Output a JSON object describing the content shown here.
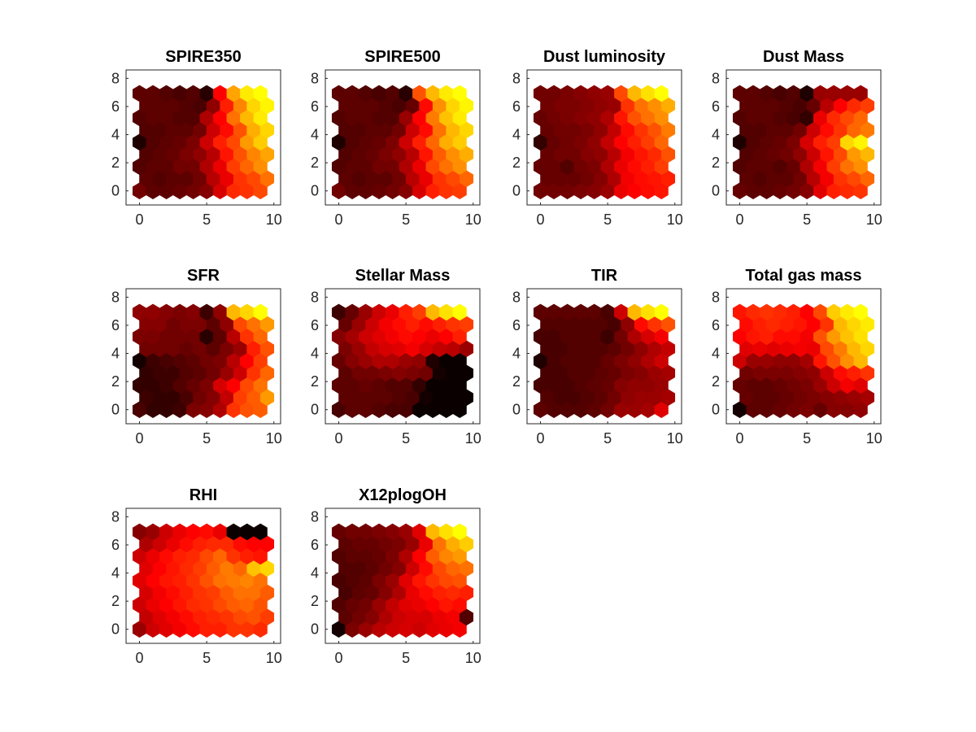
{
  "figure": {
    "colormap": "hot",
    "colormap_stops": [
      "#000000",
      "#800000",
      "#ff0000",
      "#ff8000",
      "#ffff00"
    ]
  },
  "chart_data": [
    {
      "type": "heatmap",
      "title": "SPIRE350",
      "xlim": [
        -1,
        10.5
      ],
      "ylim": [
        -1,
        8.6
      ],
      "xticks": [
        0,
        5,
        10
      ],
      "yticks": [
        0,
        2,
        4,
        6,
        8
      ],
      "values": [
        [
          0.22,
          0.18,
          0.18,
          0.2,
          0.22,
          0.26,
          0.42,
          0.58,
          0.6,
          0.64
        ],
        [
          0.18,
          0.16,
          0.18,
          0.18,
          0.22,
          0.36,
          0.46,
          0.6,
          0.64,
          0.72
        ],
        [
          0.16,
          0.18,
          0.18,
          0.22,
          0.22,
          0.34,
          0.46,
          0.62,
          0.7,
          0.78
        ],
        [
          0.16,
          0.18,
          0.2,
          0.24,
          0.28,
          0.36,
          0.54,
          0.66,
          0.76,
          0.82
        ],
        [
          0.06,
          0.16,
          0.18,
          0.2,
          0.24,
          0.4,
          0.56,
          0.64,
          0.8,
          0.9
        ],
        [
          0.16,
          0.16,
          0.18,
          0.18,
          0.22,
          0.4,
          0.52,
          0.66,
          0.84,
          0.92
        ],
        [
          0.16,
          0.18,
          0.18,
          0.16,
          0.16,
          0.34,
          0.5,
          0.72,
          0.86,
          0.96
        ],
        [
          0.18,
          0.18,
          0.18,
          0.16,
          0.14,
          0.28,
          0.56,
          0.76,
          0.92,
          0.98
        ],
        [
          0.18,
          0.18,
          0.16,
          0.14,
          0.16,
          0.08,
          0.5,
          0.82,
          0.96,
          1.0
        ]
      ]
    },
    {
      "type": "heatmap",
      "title": "SPIRE500",
      "xlim": [
        -1,
        10.5
      ],
      "ylim": [
        -1,
        8.6
      ],
      "xticks": [
        0,
        5,
        10
      ],
      "yticks": [
        0,
        2,
        4,
        6,
        8
      ],
      "values": [
        [
          0.22,
          0.18,
          0.18,
          0.2,
          0.22,
          0.26,
          0.42,
          0.56,
          0.6,
          0.62
        ],
        [
          0.18,
          0.16,
          0.18,
          0.18,
          0.22,
          0.36,
          0.46,
          0.6,
          0.64,
          0.7
        ],
        [
          0.16,
          0.18,
          0.18,
          0.22,
          0.22,
          0.34,
          0.46,
          0.64,
          0.72,
          0.78
        ],
        [
          0.16,
          0.18,
          0.2,
          0.24,
          0.28,
          0.36,
          0.54,
          0.68,
          0.78,
          0.84
        ],
        [
          0.06,
          0.16,
          0.18,
          0.2,
          0.24,
          0.4,
          0.56,
          0.7,
          0.84,
          0.9
        ],
        [
          0.16,
          0.16,
          0.18,
          0.18,
          0.22,
          0.4,
          0.52,
          0.72,
          0.86,
          0.92
        ],
        [
          0.16,
          0.18,
          0.18,
          0.16,
          0.16,
          0.3,
          0.5,
          0.74,
          0.88,
          0.96
        ],
        [
          0.18,
          0.18,
          0.18,
          0.16,
          0.14,
          0.2,
          0.52,
          0.78,
          0.92,
          0.98
        ],
        [
          0.18,
          0.18,
          0.16,
          0.14,
          0.16,
          0.08,
          0.66,
          0.86,
          0.96,
          1.0
        ]
      ]
    },
    {
      "type": "heatmap",
      "title": "Dust luminosity",
      "xlim": [
        -1,
        10.5
      ],
      "ylim": [
        -1,
        8.6
      ],
      "xticks": [
        0,
        5,
        10
      ],
      "yticks": [
        0,
        2,
        4,
        6,
        8
      ],
      "values": [
        [
          0.22,
          0.22,
          0.22,
          0.24,
          0.26,
          0.3,
          0.46,
          0.5,
          0.52,
          0.54
        ],
        [
          0.2,
          0.2,
          0.2,
          0.22,
          0.26,
          0.34,
          0.48,
          0.52,
          0.54,
          0.56
        ],
        [
          0.2,
          0.2,
          0.16,
          0.22,
          0.24,
          0.34,
          0.46,
          0.52,
          0.56,
          0.62
        ],
        [
          0.2,
          0.22,
          0.22,
          0.26,
          0.28,
          0.36,
          0.48,
          0.54,
          0.58,
          0.66
        ],
        [
          0.1,
          0.2,
          0.22,
          0.24,
          0.28,
          0.38,
          0.5,
          0.56,
          0.62,
          0.7
        ],
        [
          0.2,
          0.22,
          0.22,
          0.24,
          0.28,
          0.38,
          0.52,
          0.6,
          0.66,
          0.74
        ],
        [
          0.2,
          0.22,
          0.24,
          0.26,
          0.28,
          0.34,
          0.54,
          0.66,
          0.72,
          0.78
        ],
        [
          0.22,
          0.24,
          0.24,
          0.26,
          0.28,
          0.3,
          0.6,
          0.72,
          0.78,
          0.84
        ],
        [
          0.22,
          0.22,
          0.24,
          0.26,
          0.28,
          0.3,
          0.64,
          0.86,
          0.94,
          1.0
        ]
      ]
    },
    {
      "type": "heatmap",
      "title": "Dust Mass",
      "xlim": [
        -1,
        10.5
      ],
      "ylim": [
        -1,
        8.6
      ],
      "xticks": [
        0,
        5,
        10
      ],
      "yticks": [
        0,
        2,
        4,
        6,
        8
      ],
      "values": [
        [
          0.2,
          0.18,
          0.18,
          0.2,
          0.22,
          0.26,
          0.44,
          0.56,
          0.58,
          0.6
        ],
        [
          0.18,
          0.16,
          0.18,
          0.18,
          0.22,
          0.36,
          0.48,
          0.6,
          0.64,
          0.7
        ],
        [
          0.16,
          0.18,
          0.18,
          0.16,
          0.2,
          0.34,
          0.48,
          0.62,
          0.72,
          0.78
        ],
        [
          0.16,
          0.18,
          0.2,
          0.22,
          0.28,
          0.4,
          0.54,
          0.64,
          0.8,
          0.86
        ],
        [
          0.06,
          0.16,
          0.18,
          0.2,
          0.24,
          0.42,
          0.56,
          0.62,
          0.92,
          0.98
        ],
        [
          0.16,
          0.16,
          0.18,
          0.18,
          0.22,
          0.4,
          0.52,
          0.6,
          0.7,
          0.74
        ],
        [
          0.16,
          0.18,
          0.18,
          0.16,
          0.14,
          0.1,
          0.46,
          0.58,
          0.64,
          0.7
        ],
        [
          0.18,
          0.18,
          0.18,
          0.16,
          0.14,
          0.2,
          0.36,
          0.5,
          0.58,
          0.62
        ],
        [
          0.18,
          0.18,
          0.16,
          0.14,
          0.16,
          0.06,
          0.3,
          0.3,
          0.3,
          0.3
        ]
      ]
    },
    {
      "type": "heatmap",
      "title": "SFR",
      "xlim": [
        -1,
        10.5
      ],
      "ylim": [
        -1,
        8.6
      ],
      "xticks": [
        0,
        5,
        10
      ],
      "yticks": [
        0,
        2,
        4,
        6,
        8
      ],
      "values": [
        [
          0.14,
          0.1,
          0.1,
          0.12,
          0.24,
          0.26,
          0.34,
          0.6,
          0.66,
          0.68
        ],
        [
          0.12,
          0.1,
          0.1,
          0.14,
          0.22,
          0.26,
          0.38,
          0.62,
          0.68,
          0.8
        ],
        [
          0.1,
          0.1,
          0.12,
          0.16,
          0.2,
          0.24,
          0.42,
          0.5,
          0.64,
          0.72
        ],
        [
          0.1,
          0.12,
          0.12,
          0.16,
          0.18,
          0.22,
          0.3,
          0.4,
          0.6,
          0.7
        ],
        [
          0.04,
          0.12,
          0.14,
          0.16,
          0.18,
          0.22,
          0.24,
          0.36,
          0.5,
          0.62
        ],
        [
          0.22,
          0.22,
          0.22,
          0.2,
          0.22,
          0.18,
          0.24,
          0.3,
          0.56,
          0.66
        ],
        [
          0.24,
          0.24,
          0.22,
          0.22,
          0.22,
          0.08,
          0.18,
          0.36,
          0.6,
          0.7
        ],
        [
          0.26,
          0.26,
          0.22,
          0.24,
          0.24,
          0.18,
          0.28,
          0.64,
          0.72,
          0.8
        ],
        [
          0.28,
          0.28,
          0.26,
          0.24,
          0.26,
          0.12,
          0.28,
          0.86,
          0.92,
          1.0
        ]
      ]
    },
    {
      "type": "heatmap",
      "title": "Stellar Mass",
      "xlim": [
        -1,
        10.5
      ],
      "ylim": [
        -1,
        8.6
      ],
      "xticks": [
        0,
        5,
        10
      ],
      "yticks": [
        0,
        2,
        4,
        6,
        8
      ],
      "values": [
        [
          0.14,
          0.18,
          0.18,
          0.16,
          0.14,
          0.14,
          0.02,
          0.02,
          0.02,
          0.02
        ],
        [
          0.18,
          0.18,
          0.18,
          0.18,
          0.16,
          0.14,
          0.04,
          0.02,
          0.02,
          0.02
        ],
        [
          0.18,
          0.18,
          0.2,
          0.18,
          0.16,
          0.16,
          0.1,
          0.02,
          0.02,
          0.02
        ],
        [
          0.18,
          0.22,
          0.22,
          0.24,
          0.26,
          0.24,
          0.22,
          0.04,
          0.02,
          0.02
        ],
        [
          0.2,
          0.26,
          0.3,
          0.34,
          0.34,
          0.3,
          0.28,
          0.06,
          0.02,
          0.02
        ],
        [
          0.24,
          0.3,
          0.38,
          0.42,
          0.44,
          0.48,
          0.42,
          0.38,
          0.36,
          0.3
        ],
        [
          0.26,
          0.32,
          0.4,
          0.44,
          0.48,
          0.52,
          0.5,
          0.46,
          0.5,
          0.56
        ],
        [
          0.2,
          0.3,
          0.4,
          0.48,
          0.52,
          0.56,
          0.52,
          0.56,
          0.6,
          0.62
        ],
        [
          0.12,
          0.2,
          0.3,
          0.4,
          0.46,
          0.56,
          0.62,
          0.86,
          0.94,
          1.0
        ]
      ]
    },
    {
      "type": "heatmap",
      "title": "TIR",
      "xlim": [
        -1,
        10.5
      ],
      "ylim": [
        -1,
        8.6
      ],
      "xticks": [
        0,
        5,
        10
      ],
      "yticks": [
        0,
        2,
        4,
        6,
        8
      ],
      "values": [
        [
          0.18,
          0.16,
          0.16,
          0.16,
          0.18,
          0.22,
          0.3,
          0.3,
          0.32,
          0.44
        ],
        [
          0.16,
          0.14,
          0.14,
          0.16,
          0.18,
          0.22,
          0.28,
          0.3,
          0.3,
          0.32
        ],
        [
          0.14,
          0.14,
          0.14,
          0.16,
          0.18,
          0.2,
          0.26,
          0.28,
          0.28,
          0.3
        ],
        [
          0.14,
          0.14,
          0.16,
          0.16,
          0.18,
          0.2,
          0.24,
          0.26,
          0.3,
          0.32
        ],
        [
          0.06,
          0.14,
          0.16,
          0.16,
          0.16,
          0.2,
          0.24,
          0.28,
          0.34,
          0.4
        ],
        [
          0.14,
          0.14,
          0.16,
          0.16,
          0.16,
          0.18,
          0.22,
          0.28,
          0.34,
          0.38
        ],
        [
          0.14,
          0.14,
          0.16,
          0.16,
          0.16,
          0.12,
          0.22,
          0.34,
          0.42,
          0.48
        ],
        [
          0.16,
          0.16,
          0.16,
          0.16,
          0.16,
          0.14,
          0.28,
          0.52,
          0.6,
          0.66
        ],
        [
          0.18,
          0.18,
          0.18,
          0.18,
          0.18,
          0.14,
          0.4,
          0.86,
          0.94,
          1.0
        ]
      ]
    },
    {
      "type": "heatmap",
      "title": "Total gas mass",
      "xlim": [
        -1,
        10.5
      ],
      "ylim": [
        -1,
        8.6
      ],
      "xticks": [
        0,
        5,
        10
      ],
      "yticks": [
        0,
        2,
        4,
        6,
        8
      ],
      "values": [
        [
          0.04,
          0.18,
          0.18,
          0.2,
          0.22,
          0.24,
          0.2,
          0.26,
          0.26,
          0.28
        ],
        [
          0.2,
          0.18,
          0.18,
          0.2,
          0.22,
          0.24,
          0.26,
          0.28,
          0.3,
          0.32
        ],
        [
          0.2,
          0.18,
          0.18,
          0.2,
          0.22,
          0.24,
          0.3,
          0.4,
          0.48,
          0.44
        ],
        [
          0.22,
          0.24,
          0.24,
          0.24,
          0.26,
          0.28,
          0.4,
          0.52,
          0.56,
          0.6
        ],
        [
          0.4,
          0.3,
          0.3,
          0.28,
          0.28,
          0.32,
          0.54,
          0.66,
          0.78,
          0.86
        ],
        [
          0.44,
          0.46,
          0.44,
          0.46,
          0.48,
          0.46,
          0.64,
          0.74,
          0.86,
          0.92
        ],
        [
          0.5,
          0.54,
          0.56,
          0.52,
          0.52,
          0.48,
          0.66,
          0.8,
          0.88,
          0.94
        ],
        [
          0.52,
          0.56,
          0.58,
          0.56,
          0.54,
          0.5,
          0.6,
          0.86,
          0.92,
          0.96
        ],
        [
          0.54,
          0.58,
          0.6,
          0.58,
          0.56,
          0.5,
          0.64,
          0.9,
          0.96,
          1.0
        ]
      ]
    },
    {
      "type": "heatmap",
      "title": "RHI",
      "xlim": [
        -1,
        10.5
      ],
      "ylim": [
        -1,
        8.6
      ],
      "xticks": [
        0,
        5,
        10
      ],
      "yticks": [
        0,
        2,
        4,
        6,
        8
      ],
      "values": [
        [
          0.3,
          0.4,
          0.44,
          0.48,
          0.52,
          0.56,
          0.56,
          0.6,
          0.6,
          0.58
        ],
        [
          0.38,
          0.44,
          0.48,
          0.52,
          0.56,
          0.58,
          0.6,
          0.64,
          0.66,
          0.62
        ],
        [
          0.4,
          0.46,
          0.5,
          0.54,
          0.58,
          0.6,
          0.64,
          0.68,
          0.7,
          0.66
        ],
        [
          0.42,
          0.48,
          0.52,
          0.56,
          0.6,
          0.62,
          0.68,
          0.72,
          0.72,
          0.68
        ],
        [
          0.44,
          0.5,
          0.54,
          0.56,
          0.6,
          0.66,
          0.72,
          0.74,
          0.76,
          0.72
        ],
        [
          0.44,
          0.5,
          0.54,
          0.58,
          0.62,
          0.68,
          0.74,
          0.7,
          0.88,
          0.92
        ],
        [
          0.4,
          0.46,
          0.52,
          0.56,
          0.58,
          0.64,
          0.7,
          0.6,
          0.56,
          0.54
        ],
        [
          0.34,
          0.4,
          0.46,
          0.52,
          0.56,
          0.58,
          0.58,
          0.52,
          0.5,
          0.5
        ],
        [
          0.26,
          0.3,
          0.4,
          0.46,
          0.5,
          0.52,
          0.46,
          0.02,
          0.02,
          0.02
        ]
      ]
    },
    {
      "type": "heatmap",
      "title": "X12plogOH",
      "xlim": [
        -1,
        10.5
      ],
      "ylim": [
        -1,
        8.6
      ],
      "xticks": [
        0,
        5,
        10
      ],
      "yticks": [
        0,
        2,
        4,
        6,
        8
      ],
      "values": [
        [
          0.04,
          0.24,
          0.3,
          0.36,
          0.4,
          0.42,
          0.4,
          0.44,
          0.46,
          0.48
        ],
        [
          0.18,
          0.22,
          0.26,
          0.34,
          0.4,
          0.42,
          0.42,
          0.46,
          0.48,
          0.16
        ],
        [
          0.16,
          0.2,
          0.22,
          0.3,
          0.38,
          0.44,
          0.46,
          0.5,
          0.54,
          0.52
        ],
        [
          0.14,
          0.18,
          0.2,
          0.26,
          0.34,
          0.46,
          0.52,
          0.56,
          0.58,
          0.56
        ],
        [
          0.14,
          0.16,
          0.18,
          0.24,
          0.3,
          0.44,
          0.54,
          0.6,
          0.64,
          0.66
        ],
        [
          0.16,
          0.16,
          0.18,
          0.22,
          0.26,
          0.4,
          0.52,
          0.64,
          0.7,
          0.72
        ],
        [
          0.16,
          0.18,
          0.18,
          0.2,
          0.24,
          0.34,
          0.5,
          0.68,
          0.76,
          0.8
        ],
        [
          0.18,
          0.2,
          0.2,
          0.22,
          0.24,
          0.3,
          0.46,
          0.72,
          0.84,
          0.9
        ],
        [
          0.2,
          0.22,
          0.22,
          0.24,
          0.26,
          0.3,
          0.44,
          0.86,
          0.94,
          1.0
        ]
      ]
    }
  ]
}
